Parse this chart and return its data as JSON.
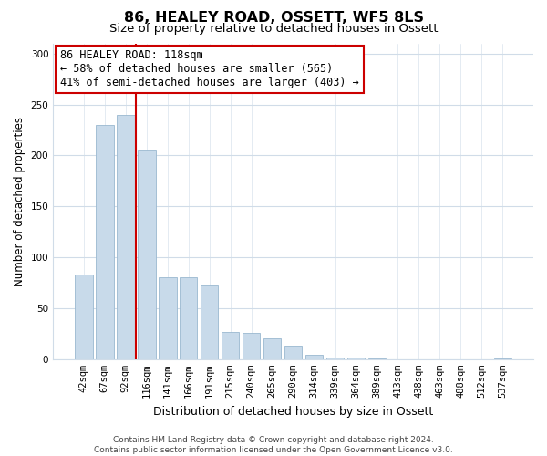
{
  "title": "86, HEALEY ROAD, OSSETT, WF5 8LS",
  "subtitle": "Size of property relative to detached houses in Ossett",
  "xlabel": "Distribution of detached houses by size in Ossett",
  "ylabel": "Number of detached properties",
  "bar_labels": [
    "42sqm",
    "67sqm",
    "92sqm",
    "116sqm",
    "141sqm",
    "166sqm",
    "191sqm",
    "215sqm",
    "240sqm",
    "265sqm",
    "290sqm",
    "314sqm",
    "339sqm",
    "364sqm",
    "389sqm",
    "413sqm",
    "438sqm",
    "463sqm",
    "488sqm",
    "512sqm",
    "537sqm"
  ],
  "bar_values": [
    83,
    230,
    240,
    205,
    80,
    80,
    72,
    27,
    26,
    20,
    13,
    4,
    2,
    2,
    1,
    0,
    0,
    0,
    0,
    0,
    1
  ],
  "bar_color": "#c8daea",
  "bar_edge_color": "#9ab8d0",
  "vline_pos": 2.5,
  "vline_color": "#cc0000",
  "annotation_line1": "86 HEALEY ROAD: 118sqm",
  "annotation_line2": "← 58% of detached houses are smaller (565)",
  "annotation_line3": "41% of semi-detached houses are larger (403) →",
  "annotation_box_color": "#ffffff",
  "annotation_box_edge_color": "#cc0000",
  "ylim": [
    0,
    310
  ],
  "yticks": [
    0,
    50,
    100,
    150,
    200,
    250,
    300
  ],
  "footer_text": "Contains HM Land Registry data © Crown copyright and database right 2024.\nContains public sector information licensed under the Open Government Licence v3.0.",
  "title_fontsize": 11.5,
  "subtitle_fontsize": 9.5,
  "xlabel_fontsize": 9,
  "ylabel_fontsize": 8.5,
  "tick_fontsize": 7.5,
  "annotation_fontsize": 8.5,
  "footer_fontsize": 6.5,
  "background_color": "#ffffff",
  "grid_color": "#d0dce8"
}
